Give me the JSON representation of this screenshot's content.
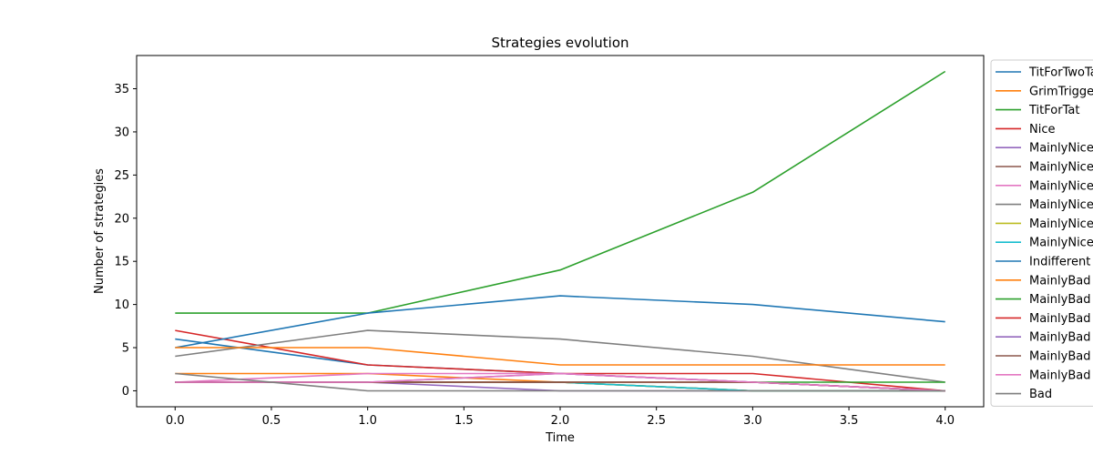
{
  "chart_data": {
    "type": "line",
    "title": "Strategies evolution",
    "xlabel": "Time",
    "ylabel": "Number of strategies",
    "xlim": [
      -0.2,
      4.2
    ],
    "ylim": [
      -1.85,
      38.85
    ],
    "xticks": [
      "0.0",
      "0.5",
      "1.0",
      "1.5",
      "2.0",
      "2.5",
      "3.0",
      "3.5",
      "4.0"
    ],
    "yticks": [
      "0",
      "5",
      "10",
      "15",
      "20",
      "25",
      "30",
      "35"
    ],
    "x": [
      0,
      1,
      2,
      3,
      4
    ],
    "grid": false,
    "legend_position": "right",
    "series": [
      {
        "name": "TitForTwoTats",
        "color": "#1f77b4",
        "values": [
          6,
          3,
          2,
          1,
          0
        ]
      },
      {
        "name": "GrimTrigger",
        "color": "#ff7f0e",
        "values": [
          2,
          2,
          1,
          0,
          0
        ]
      },
      {
        "name": "TitForTat",
        "color": "#2ca02c",
        "values": [
          9,
          9,
          14,
          23,
          37
        ]
      },
      {
        "name": "Nice",
        "color": "#d62728",
        "values": [
          7,
          3,
          2,
          2,
          0
        ]
      },
      {
        "name": "MainlyNice",
        "color": "#9467bd",
        "values": [
          1,
          1,
          0,
          0,
          0
        ]
      },
      {
        "name": "MainlyNice",
        "color": "#8c564b",
        "values": [
          1,
          1,
          1,
          0,
          0
        ]
      },
      {
        "name": "MainlyNice",
        "color": "#e377c2",
        "values": [
          1,
          2,
          2,
          1,
          0
        ]
      },
      {
        "name": "MainlyNice",
        "color": "#7f7f7f",
        "values": [
          4,
          7,
          6,
          4,
          1
        ]
      },
      {
        "name": "MainlyNice",
        "color": "#bcbd22",
        "values": [
          1,
          1,
          1,
          0,
          0
        ]
      },
      {
        "name": "MainlyNice",
        "color": "#17becf",
        "values": [
          1,
          1,
          1,
          0,
          0
        ]
      },
      {
        "name": "Indifferent",
        "color": "#1f77b4",
        "values": [
          5,
          9,
          11,
          10,
          8
        ]
      },
      {
        "name": "MainlyBad",
        "color": "#ff7f0e",
        "values": [
          5,
          5,
          3,
          3,
          3
        ]
      },
      {
        "name": "MainlyBad",
        "color": "#2ca02c",
        "values": [
          1,
          1,
          1,
          1,
          1
        ]
      },
      {
        "name": "MainlyBad",
        "color": "#d62728",
        "values": [
          1,
          1,
          1,
          1,
          0
        ]
      },
      {
        "name": "MainlyBad",
        "color": "#9467bd",
        "values": [
          1,
          1,
          2,
          1,
          0
        ]
      },
      {
        "name": "MainlyBad",
        "color": "#8c564b",
        "values": [
          1,
          1,
          1,
          1,
          0
        ]
      },
      {
        "name": "MainlyBad",
        "color": "#e377c2",
        "values": [
          1,
          1,
          2,
          1,
          0
        ]
      },
      {
        "name": "Bad",
        "color": "#7f7f7f",
        "values": [
          2,
          0,
          0,
          0,
          0
        ]
      }
    ]
  }
}
